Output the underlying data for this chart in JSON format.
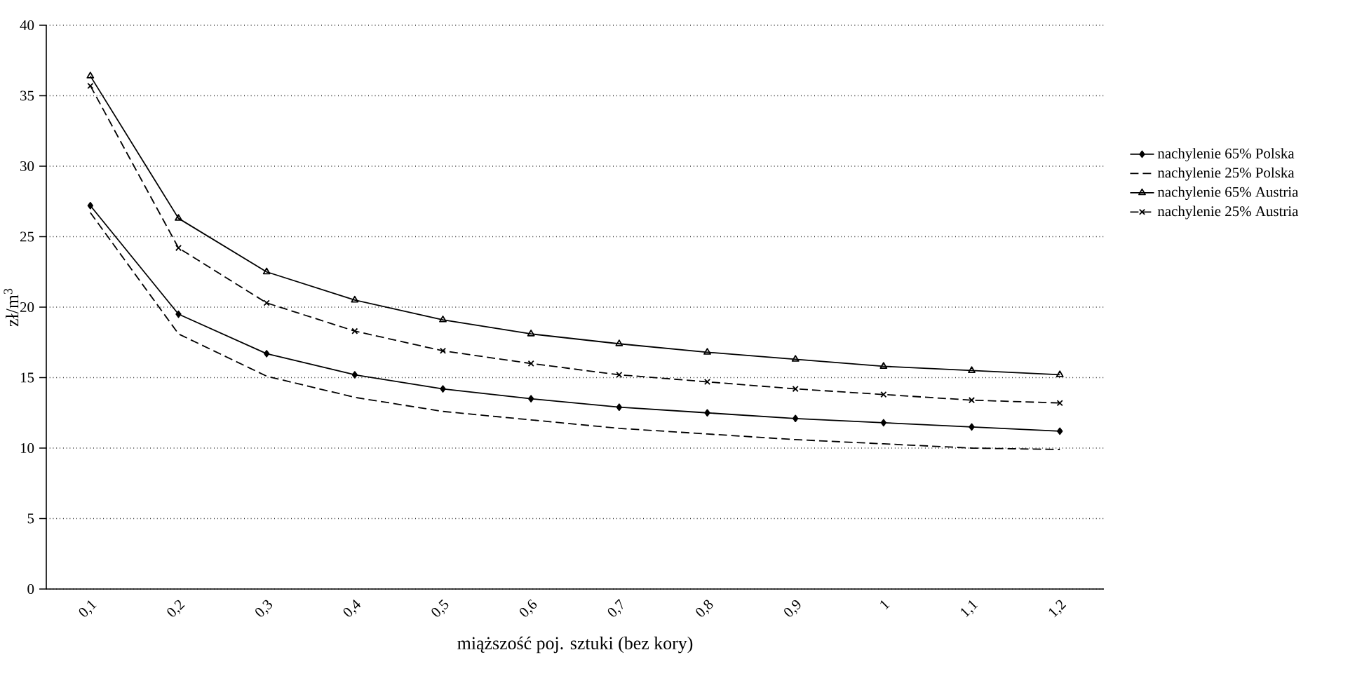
{
  "chart_data": {
    "type": "line",
    "xlabel": "miąższość poj. sztuki (bez kory)",
    "ylabel": "zł/m$^{3}$",
    "categories": [
      "0,1",
      "0,2",
      "0,3",
      "0,4",
      "0,5",
      "0,6",
      "0,7",
      "0,8",
      "0,9",
      "1",
      "1,1",
      "1,2"
    ],
    "ylim": [
      0,
      40
    ],
    "yticks": [
      0,
      5,
      10,
      15,
      20,
      25,
      30,
      35,
      40
    ],
    "grid": "y",
    "legend": "right",
    "series": [
      {
        "name": "nachylenie 65% Polska",
        "color": "#000000",
        "marker": "diamond",
        "line_style": "solid",
        "values": [
          27.2,
          19.5,
          16.7,
          15.2,
          14.2,
          13.5,
          12.9,
          12.5,
          12.1,
          11.8,
          11.5,
          11.2
        ]
      },
      {
        "name": "nachylenie 25% Polska",
        "color": "#000000",
        "marker": "none",
        "line_style": "dashed",
        "values": [
          26.7,
          18.1,
          15.1,
          13.6,
          12.6,
          12.0,
          11.4,
          11.0,
          10.6,
          10.3,
          10.0,
          9.9
        ]
      },
      {
        "name": "nachylenie 65% Austria",
        "color": "#000000",
        "marker": "triangle",
        "line_style": "solid",
        "values": [
          36.4,
          26.3,
          22.5,
          20.5,
          19.1,
          18.1,
          17.4,
          16.8,
          16.3,
          15.8,
          15.5,
          15.2
        ]
      },
      {
        "name": "nachylenie 25% Austria",
        "color": "#000000",
        "marker": "cross",
        "line_style": "dashed",
        "values": [
          35.7,
          24.2,
          20.3,
          18.3,
          16.9,
          16.0,
          15.2,
          14.7,
          14.2,
          13.8,
          13.4,
          13.2
        ]
      }
    ]
  }
}
